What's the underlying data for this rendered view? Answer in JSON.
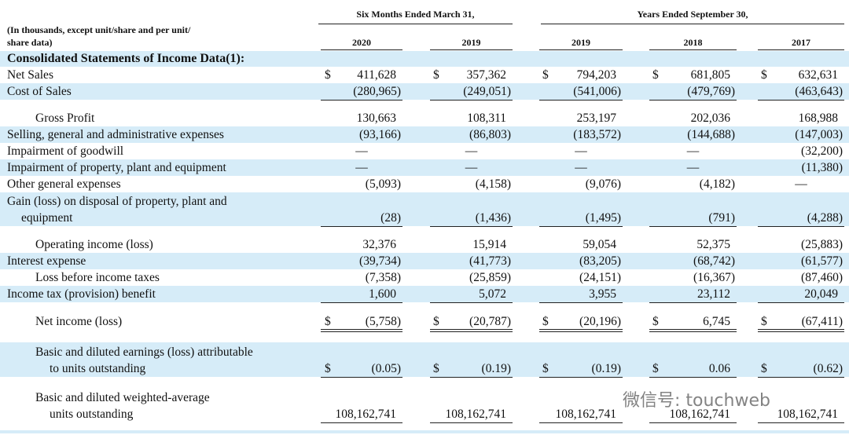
{
  "header": {
    "note": [
      "(In thousands, except unit/share and per unit/",
      "share data)"
    ],
    "groups": [
      "Six Months Ended March 31,",
      "Years Ended September 30,"
    ],
    "columns": [
      "2020",
      "2019",
      "2019",
      "2018",
      "2017"
    ]
  },
  "section_title": "Consolidated Statements of Income Data(1):",
  "rows": [
    {
      "label": [
        "Net Sales"
      ],
      "prefix": "$",
      "cells": [
        "411,628",
        "357,362",
        "794,203",
        "681,805",
        "632,631"
      ]
    },
    {
      "label": [
        "Cost of Sales"
      ],
      "cells": [
        "(280,965)",
        "(249,051)",
        "(541,006)",
        "(479,769)",
        "(463,643)"
      ]
    },
    {
      "label": [
        "Gross Profit"
      ],
      "cells": [
        "130,663",
        "108,311",
        "253,197",
        "202,036",
        "168,988"
      ]
    },
    {
      "label": [
        "Selling, general and administrative expenses"
      ],
      "cells": [
        "(93,166)",
        "(86,803)",
        "(183,572)",
        "(144,688)",
        "(147,003)"
      ]
    },
    {
      "label": [
        "Impairment of goodwill"
      ],
      "cells": [
        "—",
        "—",
        "—",
        "—",
        "(32,200)"
      ]
    },
    {
      "label": [
        "Impairment of property, plant and equipment"
      ],
      "cells": [
        "—",
        "—",
        "—",
        "—",
        "(11,380)"
      ]
    },
    {
      "label": [
        "Other general expenses"
      ],
      "cells": [
        "(5,093)",
        "(4,158)",
        "(9,076)",
        "(4,182)",
        "—"
      ]
    },
    {
      "label": [
        "Gain (loss) on disposal of property, plant and",
        "equipment"
      ],
      "cells": [
        "(28)",
        "(1,436)",
        "(1,495)",
        "(791)",
        "(4,288)"
      ]
    },
    {
      "label": [
        "Operating income (loss)"
      ],
      "cells": [
        "32,376",
        "15,914",
        "59,054",
        "52,375",
        "(25,883)"
      ]
    },
    {
      "label": [
        "Interest expense"
      ],
      "cells": [
        "(39,734)",
        "(41,773)",
        "(83,205)",
        "(68,742)",
        "(61,577)"
      ]
    },
    {
      "label": [
        "Loss before income taxes"
      ],
      "cells": [
        "(7,358)",
        "(25,859)",
        "(24,151)",
        "(16,367)",
        "(87,460)"
      ]
    },
    {
      "label": [
        "Income tax (provision) benefit"
      ],
      "cells": [
        "1,600",
        "5,072",
        "3,955",
        "23,112",
        "20,049"
      ]
    },
    {
      "label": [
        "Net income (loss)"
      ],
      "prefix": "$",
      "cells": [
        "(5,758)",
        "(20,787)",
        "(20,196)",
        "6,745",
        "(67,411)"
      ]
    },
    {
      "label": [
        "Basic and diluted earnings (loss) attributable",
        "to units outstanding"
      ],
      "prefix": "$",
      "cells": [
        "(0.05)",
        "(0.19)",
        "(0.19)",
        "0.06",
        "(0.62)"
      ]
    },
    {
      "label": [
        "Basic and diluted weighted-average",
        "units outstanding"
      ],
      "cells": [
        "108,162,741",
        "108,162,741",
        "108,162,741",
        "108,162,741",
        "108,162,741"
      ]
    }
  ],
  "watermark": "微信号: touchweb"
}
